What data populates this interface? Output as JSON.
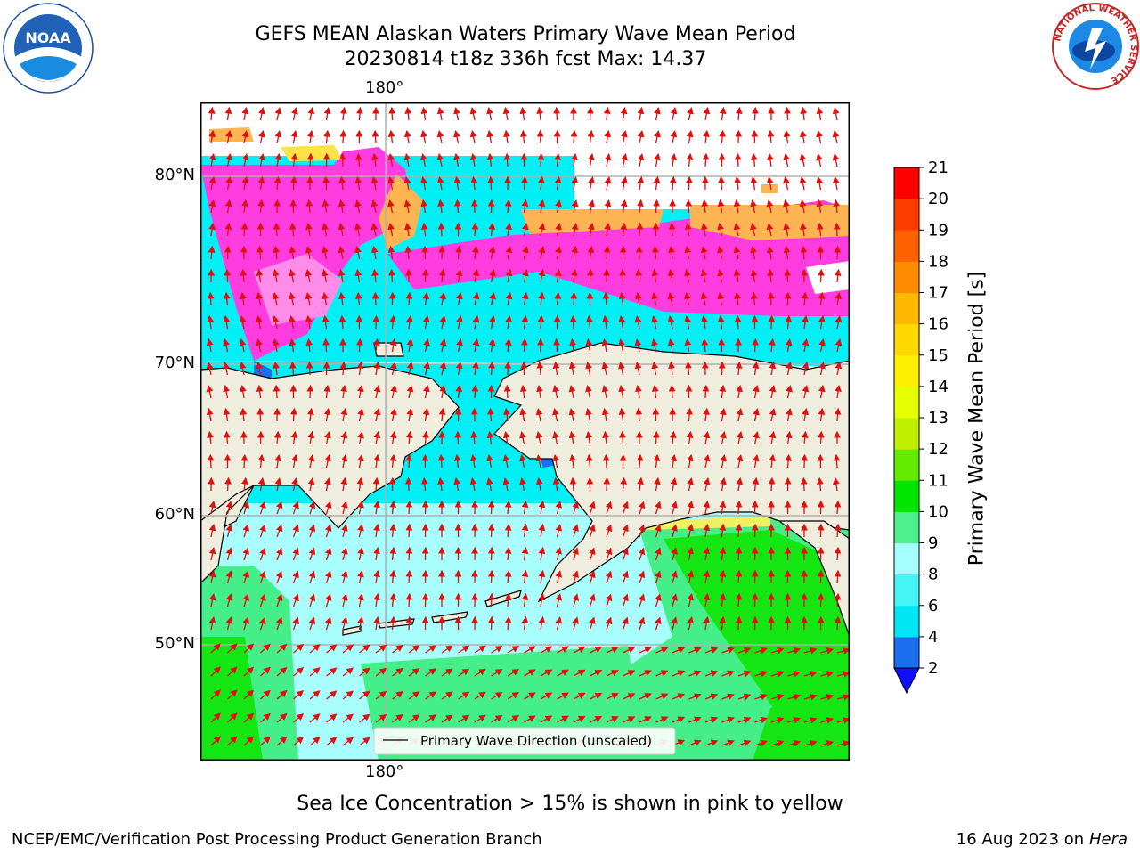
{
  "title_line1": "GEFS MEAN Alaskan Waters Primary Wave Mean Period",
  "title_line2": "20230814 t18z 336h fcst   Max: 14.37",
  "lon_labels": {
    "top": "180°",
    "bottom": "180°"
  },
  "lat_labels": [
    "80°N",
    "70°N",
    "60°N",
    "50°N"
  ],
  "legend": {
    "label": "Primary Wave Direction (unscaled)"
  },
  "colorbar": {
    "label": "Primary Wave Mean Period [s]",
    "ticks": [
      "2",
      "4",
      "6",
      "8",
      "9",
      "10",
      "11",
      "12",
      "13",
      "14",
      "15",
      "16",
      "17",
      "18",
      "19",
      "20",
      "21"
    ],
    "colors": [
      "#1a6ef0",
      "#00e6f5",
      "#45f5f5",
      "#a6ffff",
      "#4df08c",
      "#00e600",
      "#64eb00",
      "#c0f000",
      "#e6ff00",
      "#fff000",
      "#ffd800",
      "#ffb800",
      "#ff8c00",
      "#ff6000",
      "#ff3c00",
      "#ff0000"
    ],
    "under_color": "#1010ff"
  },
  "colors": {
    "land": "#efedde",
    "ice_pink": "#ff3ce0",
    "ice_orange": "#ffb454",
    "ice_yellow": "#ffe24a",
    "arrow": "#e01010"
  },
  "note": "Sea Ice Concentration > 15% is shown in pink to yellow",
  "footer_left": "NCEP/EMC/Verification Post Processing Product Generation Branch",
  "footer_right_date": "16 Aug 2023 on",
  "footer_right_machine": "Hera",
  "logos": {
    "noaa": "NOAA",
    "nws": "NATIONAL WEATHER SERVICE"
  }
}
